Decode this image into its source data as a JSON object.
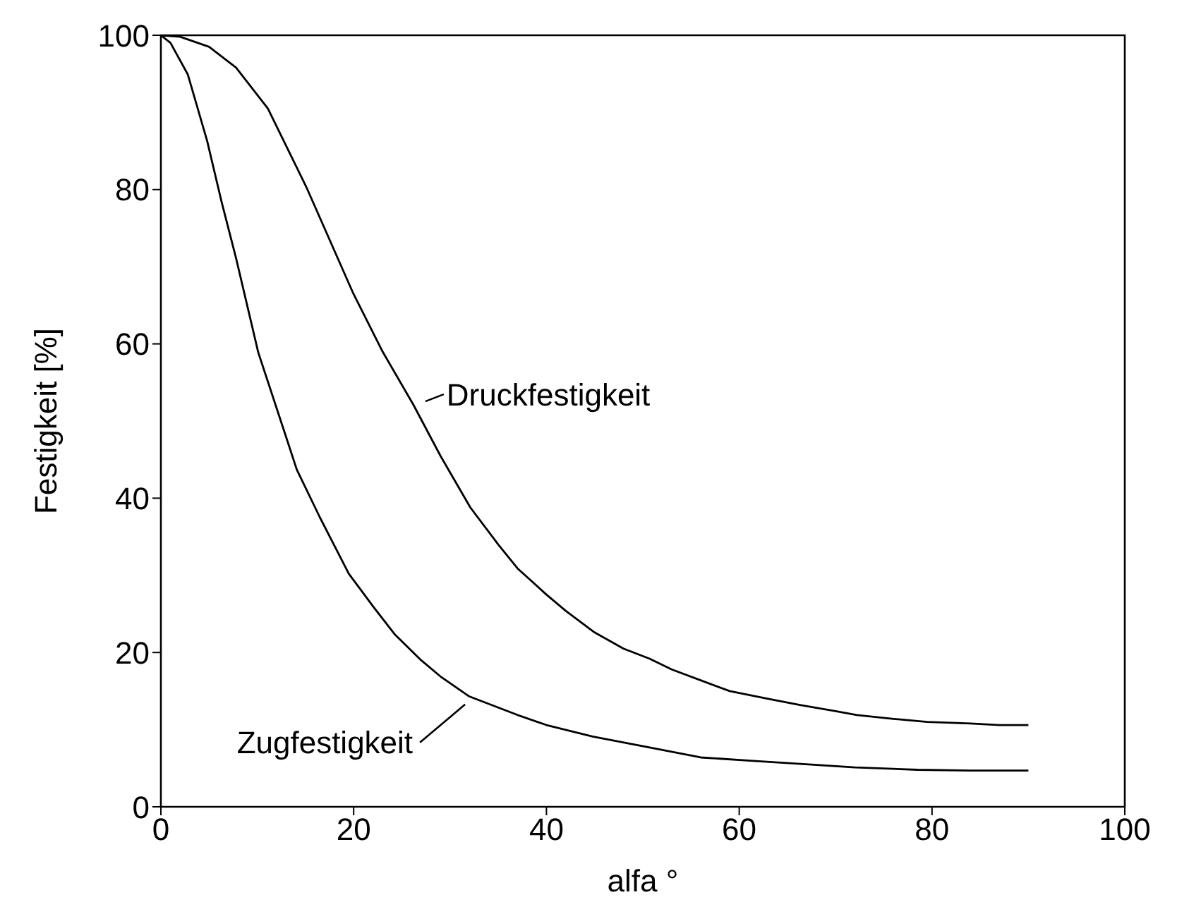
{
  "chart_data": {
    "type": "line",
    "xlabel": "alfa °",
    "ylabel": "Festigkeit [%]",
    "xlim": [
      0,
      100
    ],
    "ylim": [
      0,
      100
    ],
    "xticks": [
      0,
      20,
      40,
      60,
      80,
      100
    ],
    "yticks": [
      0,
      20,
      40,
      60,
      80,
      100
    ],
    "grid": false,
    "legend": false,
    "marker": "none",
    "line_style": "solid",
    "series": [
      {
        "color": "#000000",
        "x": [
          0,
          2,
          5,
          7.8,
          11.1,
          15.1,
          19.9,
          23,
          26.2,
          29,
          32.1,
          35,
          37,
          40,
          42,
          45,
          48,
          50.7,
          53,
          56,
          59,
          63,
          66.3,
          70,
          72.2,
          76,
          79.5,
          84,
          87,
          90
        ],
        "values": [
          100,
          99.8,
          98.5,
          95.8,
          90.5,
          80.3,
          66.7,
          59,
          52.1,
          45.5,
          38.8,
          34,
          30.9,
          27.5,
          25.4,
          22.6,
          20.5,
          19.2,
          17.8,
          16.4,
          15,
          14,
          13.2,
          12.4,
          11.9,
          11.4,
          11,
          10.8,
          10.6,
          10.6
        ]
      },
      {
        "color": "#000000",
        "x": [
          0,
          1,
          2.8,
          4.8,
          6.3,
          7.8,
          10.1,
          13,
          14.1,
          16.5,
          19.5,
          22,
          24.3,
          27,
          29.1,
          32,
          37,
          40,
          44.8,
          50.7,
          56,
          62,
          67.2,
          72,
          78.5,
          84,
          90
        ],
        "values": [
          100,
          99,
          94.9,
          86.3,
          78.4,
          71.1,
          58.9,
          47.9,
          43.7,
          37.5,
          30.2,
          26,
          22.3,
          19,
          16.8,
          14.3,
          11.9,
          10.6,
          9.1,
          7.7,
          6.4,
          5.9,
          5.5,
          5.1,
          4.8,
          4.7,
          4.7
        ]
      }
    ],
    "annotations": [
      {
        "text": "Druckfestigkeit",
        "x": 27,
        "y": 52
      },
      {
        "text": "Zugfestigkeit",
        "x": 32,
        "y": 14
      }
    ]
  }
}
